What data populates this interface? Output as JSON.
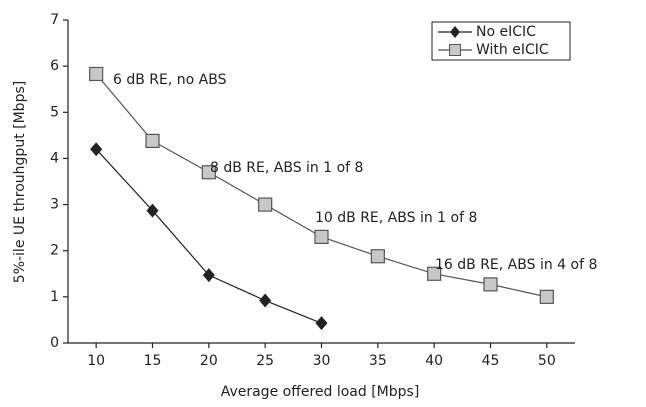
{
  "chart_data": {
    "type": "line",
    "xlabel": "Average offered load [Mbps]",
    "ylabel": "5%-ile UE throuhgput [Mbps]",
    "xlim": [
      7.5,
      52.5
    ],
    "ylim": [
      0,
      7
    ],
    "xticks": [
      10,
      15,
      20,
      25,
      30,
      35,
      40,
      45,
      50
    ],
    "yticks": [
      0,
      1,
      2,
      3,
      4,
      5,
      6,
      7
    ],
    "legend": "upper right",
    "series": [
      {
        "name": "No eICIC",
        "color": "#222222",
        "marker": "diamond",
        "x": [
          10,
          15,
          20,
          25,
          30
        ],
        "values": [
          4.2,
          2.87,
          1.47,
          0.92,
          0.43
        ]
      },
      {
        "name": "With eICIC",
        "color": "#555555",
        "marker": "square",
        "x": [
          10,
          15,
          20,
          25,
          30,
          35,
          40,
          45,
          50
        ],
        "values": [
          5.83,
          4.38,
          3.7,
          3.0,
          2.3,
          1.88,
          1.5,
          1.27,
          1.0
        ]
      }
    ],
    "annotations": [
      "6 dB RE, no ABS",
      "8 dB RE, ABS in 1 of 8",
      "10 dB RE, ABS in 1 of 8",
      "16 dB RE, ABS in 4 of 8"
    ]
  }
}
